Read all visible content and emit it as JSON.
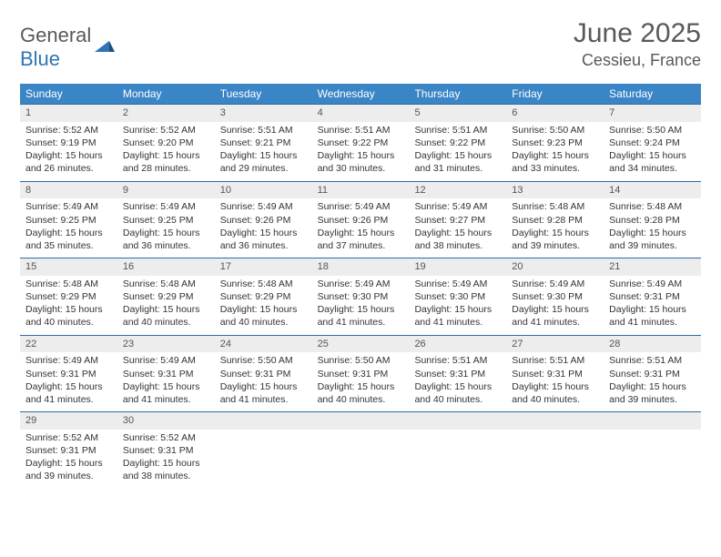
{
  "logo": {
    "text_gray": "General",
    "text_blue": "Blue"
  },
  "title": "June 2025",
  "location": "Cessieu, France",
  "colors": {
    "header_bg": "#3a85c6",
    "header_text": "#ffffff",
    "row_divider": "#2e6ca4",
    "daynum_bg": "#ededed",
    "body_text": "#333333",
    "title_text": "#595959",
    "logo_gray": "#58595b",
    "logo_blue": "#2e75b6",
    "background": "#ffffff"
  },
  "day_names": [
    "Sunday",
    "Monday",
    "Tuesday",
    "Wednesday",
    "Thursday",
    "Friday",
    "Saturday"
  ],
  "weeks": [
    [
      {
        "n": "1",
        "sr": "Sunrise: 5:52 AM",
        "ss": "Sunset: 9:19 PM",
        "d1": "Daylight: 15 hours",
        "d2": "and 26 minutes."
      },
      {
        "n": "2",
        "sr": "Sunrise: 5:52 AM",
        "ss": "Sunset: 9:20 PM",
        "d1": "Daylight: 15 hours",
        "d2": "and 28 minutes."
      },
      {
        "n": "3",
        "sr": "Sunrise: 5:51 AM",
        "ss": "Sunset: 9:21 PM",
        "d1": "Daylight: 15 hours",
        "d2": "and 29 minutes."
      },
      {
        "n": "4",
        "sr": "Sunrise: 5:51 AM",
        "ss": "Sunset: 9:22 PM",
        "d1": "Daylight: 15 hours",
        "d2": "and 30 minutes."
      },
      {
        "n": "5",
        "sr": "Sunrise: 5:51 AM",
        "ss": "Sunset: 9:22 PM",
        "d1": "Daylight: 15 hours",
        "d2": "and 31 minutes."
      },
      {
        "n": "6",
        "sr": "Sunrise: 5:50 AM",
        "ss": "Sunset: 9:23 PM",
        "d1": "Daylight: 15 hours",
        "d2": "and 33 minutes."
      },
      {
        "n": "7",
        "sr": "Sunrise: 5:50 AM",
        "ss": "Sunset: 9:24 PM",
        "d1": "Daylight: 15 hours",
        "d2": "and 34 minutes."
      }
    ],
    [
      {
        "n": "8",
        "sr": "Sunrise: 5:49 AM",
        "ss": "Sunset: 9:25 PM",
        "d1": "Daylight: 15 hours",
        "d2": "and 35 minutes."
      },
      {
        "n": "9",
        "sr": "Sunrise: 5:49 AM",
        "ss": "Sunset: 9:25 PM",
        "d1": "Daylight: 15 hours",
        "d2": "and 36 minutes."
      },
      {
        "n": "10",
        "sr": "Sunrise: 5:49 AM",
        "ss": "Sunset: 9:26 PM",
        "d1": "Daylight: 15 hours",
        "d2": "and 36 minutes."
      },
      {
        "n": "11",
        "sr": "Sunrise: 5:49 AM",
        "ss": "Sunset: 9:26 PM",
        "d1": "Daylight: 15 hours",
        "d2": "and 37 minutes."
      },
      {
        "n": "12",
        "sr": "Sunrise: 5:49 AM",
        "ss": "Sunset: 9:27 PM",
        "d1": "Daylight: 15 hours",
        "d2": "and 38 minutes."
      },
      {
        "n": "13",
        "sr": "Sunrise: 5:48 AM",
        "ss": "Sunset: 9:28 PM",
        "d1": "Daylight: 15 hours",
        "d2": "and 39 minutes."
      },
      {
        "n": "14",
        "sr": "Sunrise: 5:48 AM",
        "ss": "Sunset: 9:28 PM",
        "d1": "Daylight: 15 hours",
        "d2": "and 39 minutes."
      }
    ],
    [
      {
        "n": "15",
        "sr": "Sunrise: 5:48 AM",
        "ss": "Sunset: 9:29 PM",
        "d1": "Daylight: 15 hours",
        "d2": "and 40 minutes."
      },
      {
        "n": "16",
        "sr": "Sunrise: 5:48 AM",
        "ss": "Sunset: 9:29 PM",
        "d1": "Daylight: 15 hours",
        "d2": "and 40 minutes."
      },
      {
        "n": "17",
        "sr": "Sunrise: 5:48 AM",
        "ss": "Sunset: 9:29 PM",
        "d1": "Daylight: 15 hours",
        "d2": "and 40 minutes."
      },
      {
        "n": "18",
        "sr": "Sunrise: 5:49 AM",
        "ss": "Sunset: 9:30 PM",
        "d1": "Daylight: 15 hours",
        "d2": "and 41 minutes."
      },
      {
        "n": "19",
        "sr": "Sunrise: 5:49 AM",
        "ss": "Sunset: 9:30 PM",
        "d1": "Daylight: 15 hours",
        "d2": "and 41 minutes."
      },
      {
        "n": "20",
        "sr": "Sunrise: 5:49 AM",
        "ss": "Sunset: 9:30 PM",
        "d1": "Daylight: 15 hours",
        "d2": "and 41 minutes."
      },
      {
        "n": "21",
        "sr": "Sunrise: 5:49 AM",
        "ss": "Sunset: 9:31 PM",
        "d1": "Daylight: 15 hours",
        "d2": "and 41 minutes."
      }
    ],
    [
      {
        "n": "22",
        "sr": "Sunrise: 5:49 AM",
        "ss": "Sunset: 9:31 PM",
        "d1": "Daylight: 15 hours",
        "d2": "and 41 minutes."
      },
      {
        "n": "23",
        "sr": "Sunrise: 5:49 AM",
        "ss": "Sunset: 9:31 PM",
        "d1": "Daylight: 15 hours",
        "d2": "and 41 minutes."
      },
      {
        "n": "24",
        "sr": "Sunrise: 5:50 AM",
        "ss": "Sunset: 9:31 PM",
        "d1": "Daylight: 15 hours",
        "d2": "and 41 minutes."
      },
      {
        "n": "25",
        "sr": "Sunrise: 5:50 AM",
        "ss": "Sunset: 9:31 PM",
        "d1": "Daylight: 15 hours",
        "d2": "and 40 minutes."
      },
      {
        "n": "26",
        "sr": "Sunrise: 5:51 AM",
        "ss": "Sunset: 9:31 PM",
        "d1": "Daylight: 15 hours",
        "d2": "and 40 minutes."
      },
      {
        "n": "27",
        "sr": "Sunrise: 5:51 AM",
        "ss": "Sunset: 9:31 PM",
        "d1": "Daylight: 15 hours",
        "d2": "and 40 minutes."
      },
      {
        "n": "28",
        "sr": "Sunrise: 5:51 AM",
        "ss": "Sunset: 9:31 PM",
        "d1": "Daylight: 15 hours",
        "d2": "and 39 minutes."
      }
    ],
    [
      {
        "n": "29",
        "sr": "Sunrise: 5:52 AM",
        "ss": "Sunset: 9:31 PM",
        "d1": "Daylight: 15 hours",
        "d2": "and 39 minutes."
      },
      {
        "n": "30",
        "sr": "Sunrise: 5:52 AM",
        "ss": "Sunset: 9:31 PM",
        "d1": "Daylight: 15 hours",
        "d2": "and 38 minutes."
      },
      {
        "empty": true
      },
      {
        "empty": true
      },
      {
        "empty": true
      },
      {
        "empty": true
      },
      {
        "empty": true
      }
    ]
  ]
}
